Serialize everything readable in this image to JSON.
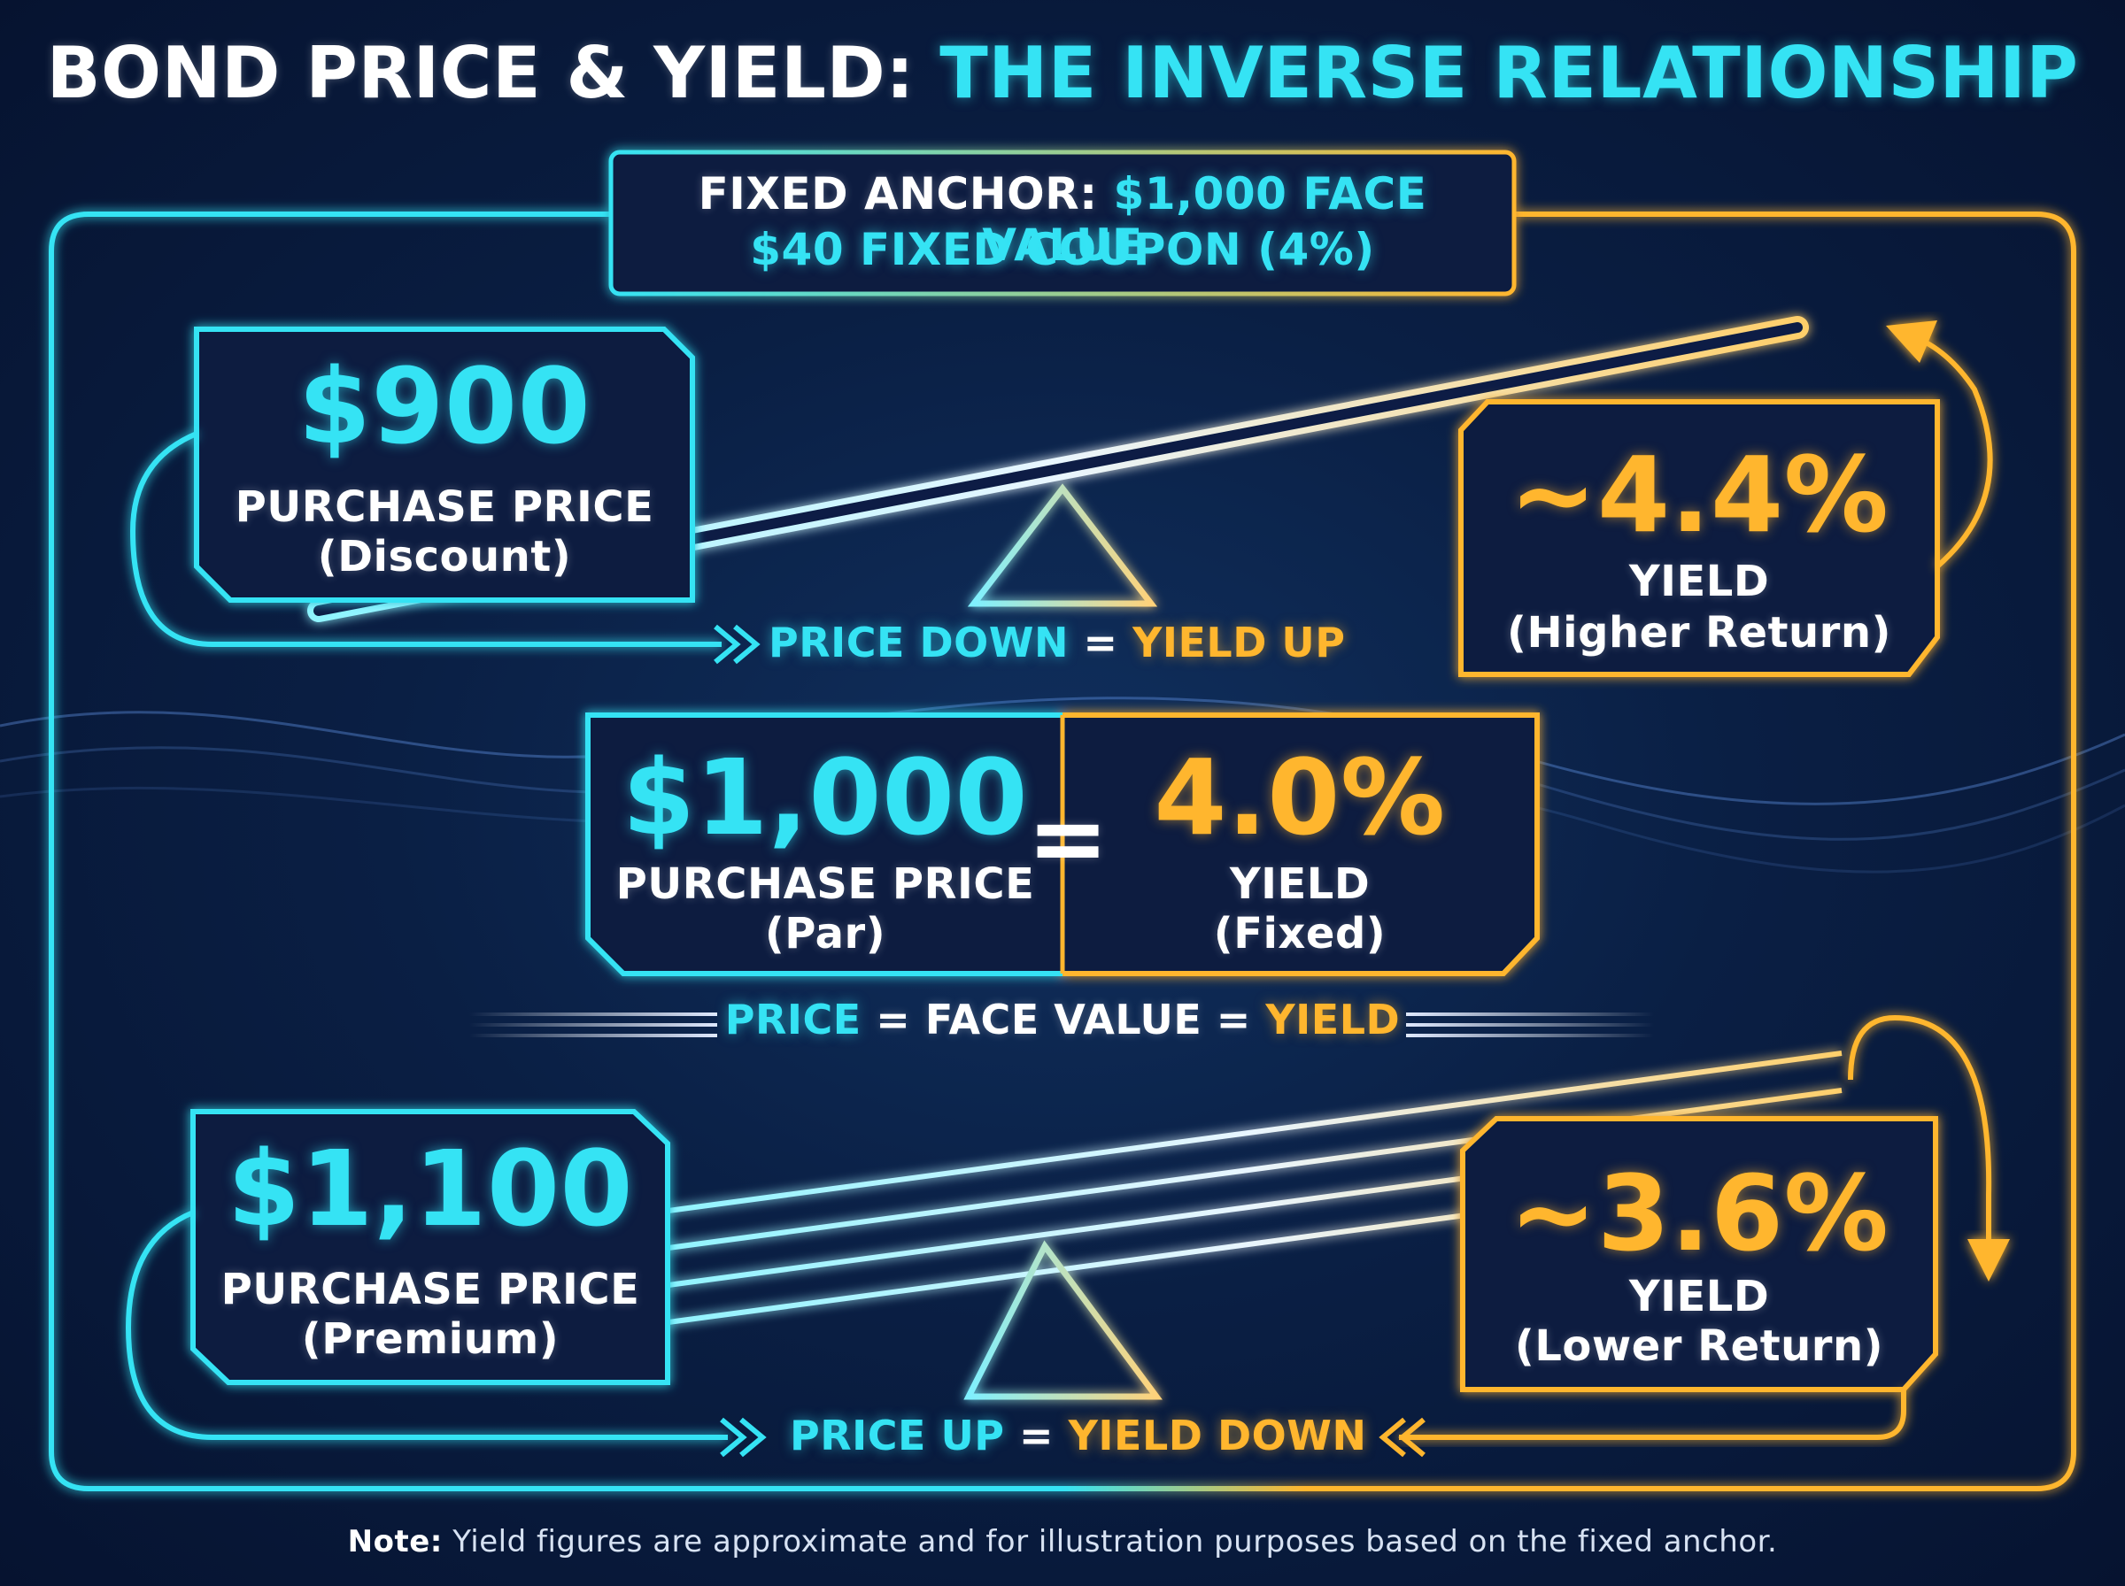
{
  "title": {
    "part1": "BOND PRICE & YIELD:",
    "part2": "THE INVERSE RELATIONSHIP"
  },
  "anchor": {
    "label": "FIXED ANCHOR:",
    "face_value": "$1,000 FACE VALUE",
    "coupon": "$40 FIXED COUPON (4%)"
  },
  "discount": {
    "price": "$900",
    "price_label": "PURCHASE PRICE",
    "price_note": "(Discount)",
    "yield": "~4.4%",
    "yield_label": "YIELD",
    "yield_note": "(Higher Return)",
    "rule_a": "PRICE DOWN",
    "rule_eq": "=",
    "rule_b": "YIELD UP"
  },
  "par": {
    "price": "$1,000",
    "price_label": "PURCHASE PRICE",
    "price_note": "(Par)",
    "equals": "=",
    "yield": "4.0%",
    "yield_label": "YIELD",
    "yield_note": "(Fixed)",
    "rule_a": "PRICE",
    "rule_eq1": "=",
    "rule_mid": "FACE VALUE",
    "rule_eq2": "=",
    "rule_b": "YIELD"
  },
  "premium": {
    "price": "$1,100",
    "price_label": "PURCHASE PRICE",
    "price_note": "(Premium)",
    "yield": "~3.6%",
    "yield_label": "YIELD",
    "yield_note": "(Lower Return)",
    "rule_a": "PRICE UP",
    "rule_eq": "=",
    "rule_b": "YIELD DOWN"
  },
  "note": {
    "label": "Note:",
    "text": "Yield figures are approximate and for illustration purposes based on the fixed anchor."
  },
  "colors": {
    "price": "#35e3f4",
    "yield": "#ffb62e",
    "background": "#0a1f44"
  }
}
